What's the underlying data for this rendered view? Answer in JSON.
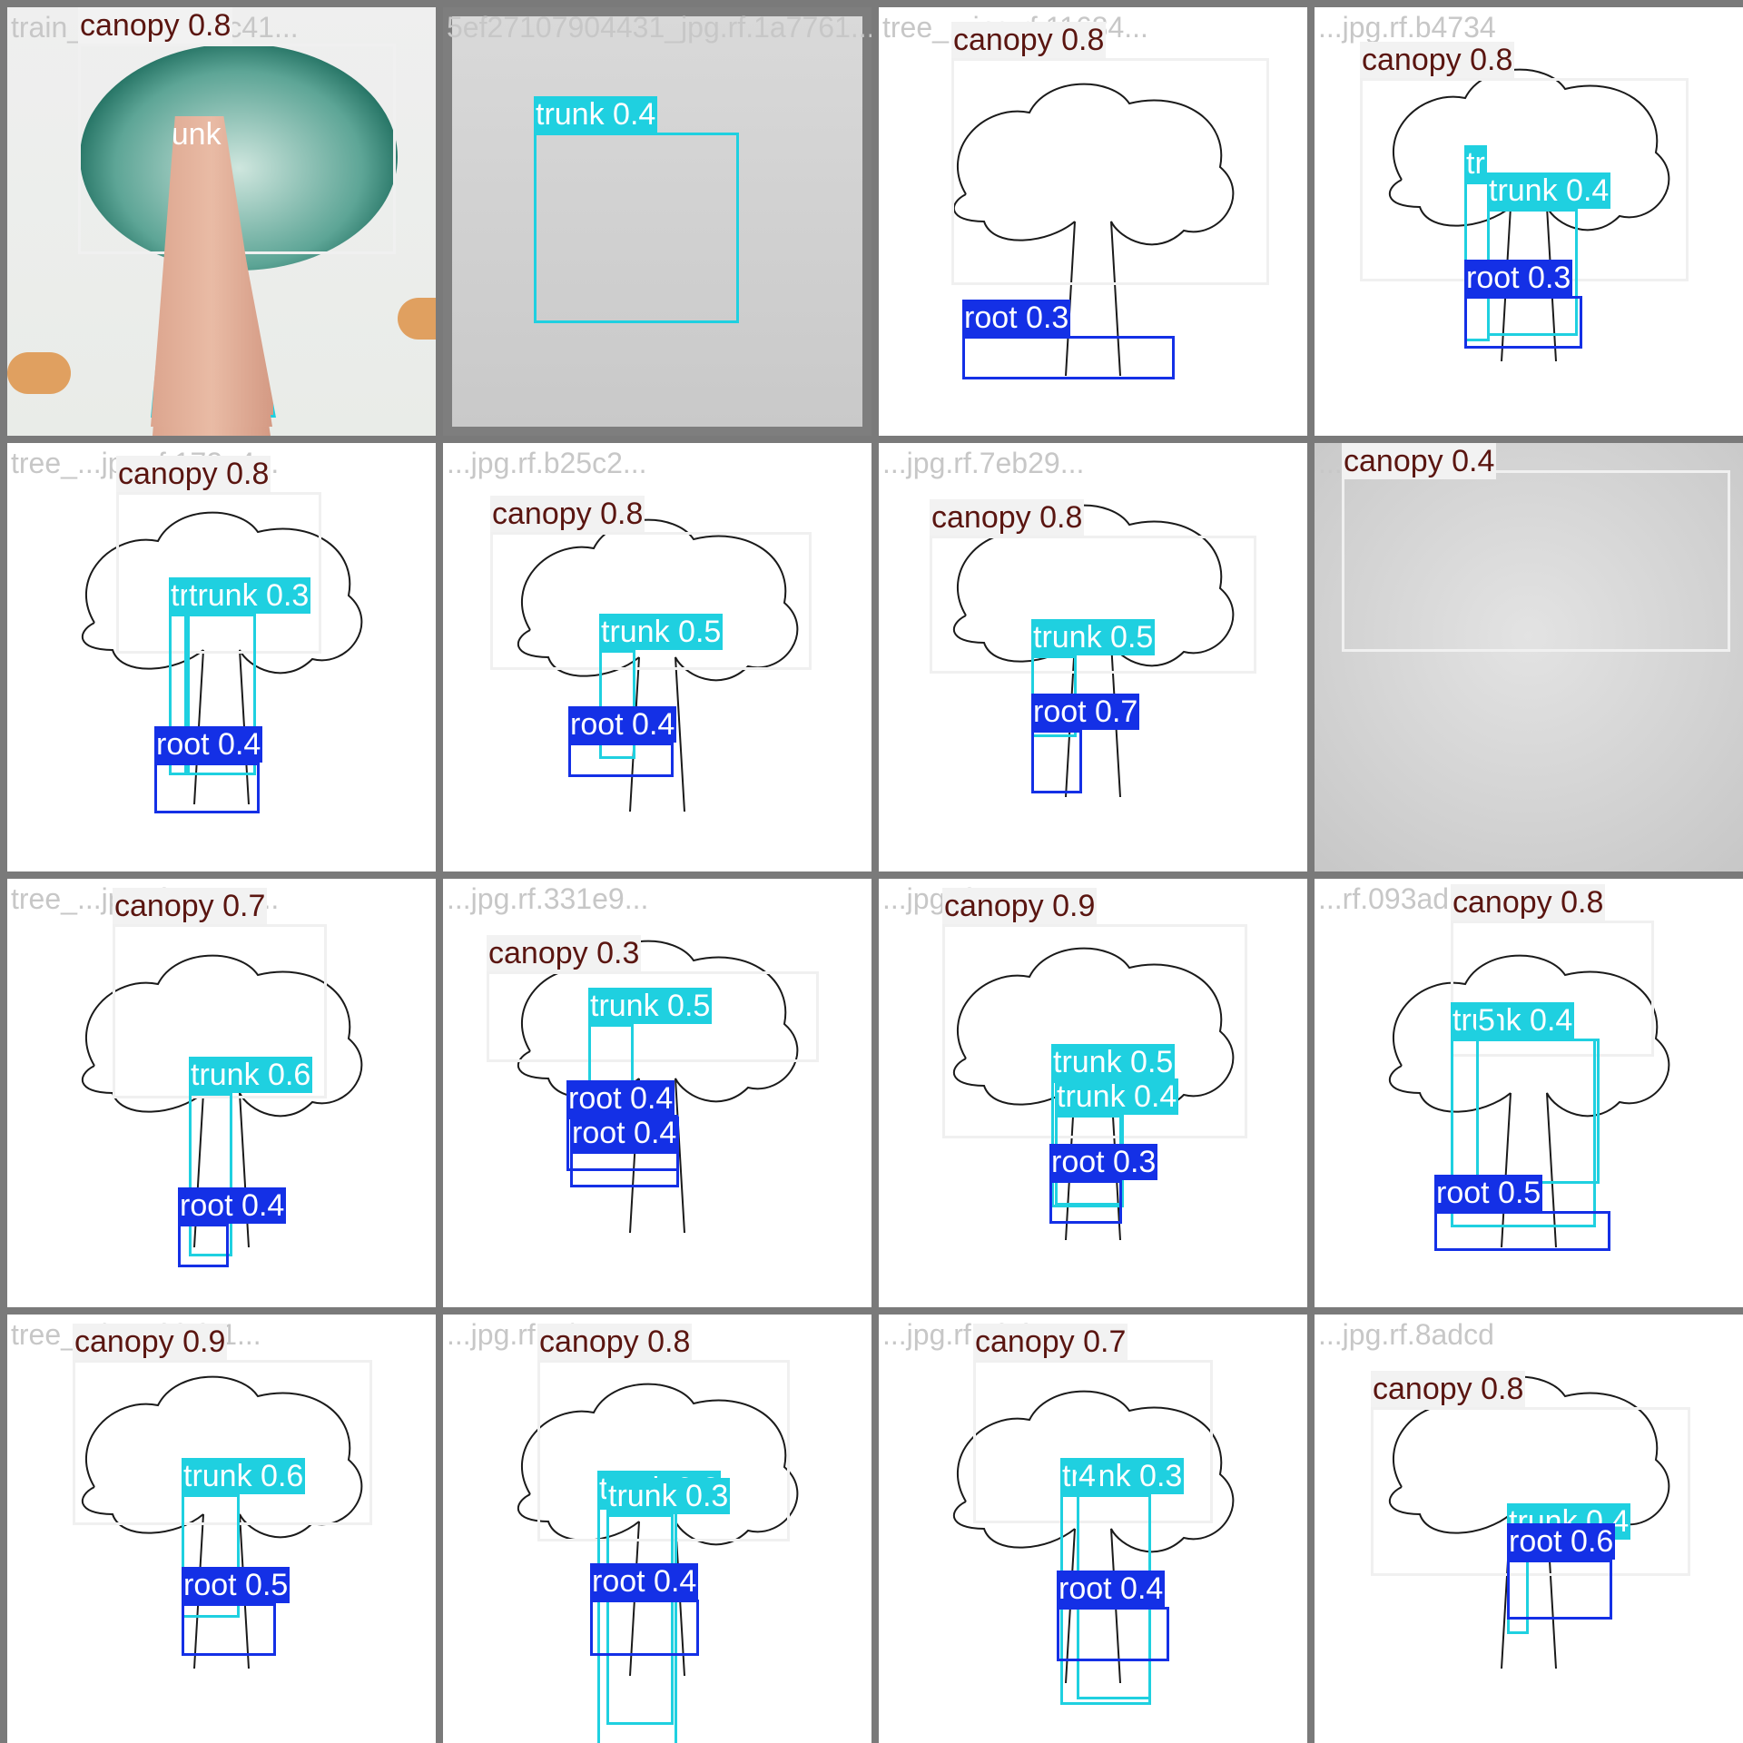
{
  "colors": {
    "canopy": "#f0f0f0",
    "trunk": "#1fd0e0",
    "root": "#1430e6",
    "canopy_text": "#5a1510"
  },
  "tiles": [
    {
      "filename": "train_...jpg.rf.50cc41...",
      "style": "green",
      "detections": [
        {
          "cls": "canopy",
          "label": "canopy 0.8"
        },
        {
          "cls": "trunk",
          "label": "trunk 0.6"
        }
      ]
    },
    {
      "filename": "5ef27107904431_jpg.rf.1a7761...",
      "style": "dark",
      "detections": [
        {
          "cls": "trunk",
          "label": "trunk 0.4"
        }
      ]
    },
    {
      "filename": "tree_...jpg.rf.11684...",
      "style": "sketch",
      "detections": [
        {
          "cls": "canopy",
          "label": "canopy 0.8"
        },
        {
          "cls": "root",
          "label": "root 0.3"
        }
      ]
    },
    {
      "filename": "...jpg.rf.b4734",
      "style": "sketch",
      "detections": [
        {
          "cls": "canopy",
          "label": "canopy 0.8"
        },
        {
          "cls": "trunk",
          "label": "tr"
        },
        {
          "cls": "trunk",
          "label": "trunk 0.4"
        },
        {
          "cls": "root",
          "label": "root 0.3"
        }
      ]
    },
    {
      "filename": "tree_...jpg.rf.172a4...",
      "style": "sketch",
      "detections": [
        {
          "cls": "canopy",
          "label": "canopy 0.8"
        },
        {
          "cls": "trunk",
          "label": "tr"
        },
        {
          "cls": "trunk",
          "label": "trunk 0.3"
        },
        {
          "cls": "root",
          "label": "root 0.4"
        }
      ]
    },
    {
      "filename": "...jpg.rf.b25c2...",
      "style": "sketch",
      "detections": [
        {
          "cls": "canopy",
          "label": "canopy 0.8"
        },
        {
          "cls": "trunk",
          "label": "trunk 0.5"
        },
        {
          "cls": "root",
          "label": "root 0.4"
        }
      ]
    },
    {
      "filename": "...jpg.rf.7eb29...",
      "style": "sketch",
      "detections": [
        {
          "cls": "canopy",
          "label": "canopy 0.8"
        },
        {
          "cls": "trunk",
          "label": "trunk 0.5"
        },
        {
          "cls": "root",
          "label": "root 0.7"
        }
      ]
    },
    {
      "filename": "...jpg.rf.830d6",
      "style": "pencil",
      "detections": [
        {
          "cls": "canopy",
          "label": "canopy 0.4"
        }
      ]
    },
    {
      "filename": "tree_...jpg.rf.ae6a3...",
      "style": "sketch",
      "detections": [
        {
          "cls": "canopy",
          "label": "canopy 0.7"
        },
        {
          "cls": "trunk",
          "label": "trunk 0.6"
        },
        {
          "cls": "root",
          "label": "root 0.4"
        }
      ]
    },
    {
      "filename": "...jpg.rf.331e9...",
      "style": "sketch",
      "detections": [
        {
          "cls": "canopy",
          "label": "canopy 0.3"
        },
        {
          "cls": "trunk",
          "label": "trunk 0.5"
        },
        {
          "cls": "root",
          "label": "root 0.4"
        },
        {
          "cls": "root",
          "label": "root 0.4"
        }
      ]
    },
    {
      "filename": "...jpg.rf.a8c50...",
      "style": "sketch",
      "detections": [
        {
          "cls": "canopy",
          "label": "canopy 0.9"
        },
        {
          "cls": "trunk",
          "label": "trunk 0.5"
        },
        {
          "cls": "trunk",
          "label": "trunk 0.4"
        },
        {
          "cls": "root",
          "label": "root 0.3"
        }
      ]
    },
    {
      "filename": "...rf.093ad",
      "style": "sketch",
      "detections": [
        {
          "cls": "canopy",
          "label": "canopy 0.8"
        },
        {
          "cls": "trunk",
          "label": "trunk 0.4"
        },
        {
          "cls": "trunk",
          "label": "5"
        },
        {
          "cls": "root",
          "label": "root 0.5"
        }
      ]
    },
    {
      "filename": "tree_...jpg.rf.fcf71...",
      "style": "sketch",
      "detections": [
        {
          "cls": "canopy",
          "label": "canopy 0.9"
        },
        {
          "cls": "trunk",
          "label": "trunk 0.6"
        },
        {
          "cls": "root",
          "label": "root 0.5"
        }
      ]
    },
    {
      "filename": "...jpg.rf.4d72e...",
      "style": "sketch",
      "detections": [
        {
          "cls": "canopy",
          "label": "canopy 0.8"
        },
        {
          "cls": "trunk",
          "label": "trunk 0.3"
        },
        {
          "cls": "trunk",
          "label": "trunk 0.3"
        },
        {
          "cls": "root",
          "label": "root 0.4"
        }
      ]
    },
    {
      "filename": "...jpg.rf.ef6f0...",
      "style": "sketch",
      "detections": [
        {
          "cls": "canopy",
          "label": "canopy 0.7"
        },
        {
          "cls": "trunk",
          "label": "trunk 0.3"
        },
        {
          "cls": "trunk",
          "label": "4"
        },
        {
          "cls": "root",
          "label": "root 0.4"
        }
      ]
    },
    {
      "filename": "...jpg.rf.8adcd",
      "style": "sketch",
      "detections": [
        {
          "cls": "canopy",
          "label": "canopy 0.8"
        },
        {
          "cls": "trunk",
          "label": "trunk 0.4"
        },
        {
          "cls": "root",
          "label": "root 0.6"
        }
      ]
    }
  ]
}
